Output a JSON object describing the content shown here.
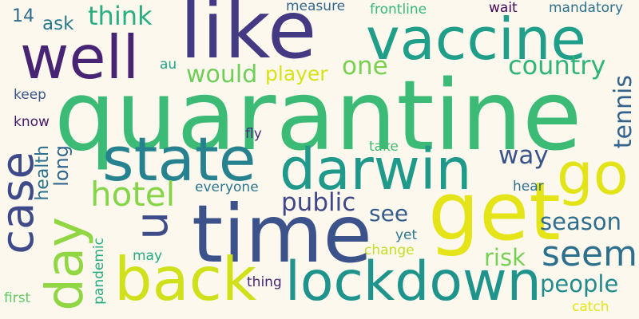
{
  "words": [
    {
      "text": "quarantine",
      "color": "#3bbb75"
    },
    {
      "text": "like",
      "color": "#443983"
    },
    {
      "text": "vaccine",
      "color": "#1f9e89"
    },
    {
      "text": "well",
      "color": "#482475"
    },
    {
      "text": "time",
      "color": "#3b528b"
    },
    {
      "text": "state",
      "color": "#26828e"
    },
    {
      "text": "darwin",
      "color": "#1f9a8a"
    },
    {
      "text": "get",
      "color": "#e5e419"
    },
    {
      "text": "go",
      "color": "#e2e418"
    },
    {
      "text": "case",
      "color": "#3e4a89"
    },
    {
      "text": "day",
      "color": "#90d743"
    },
    {
      "text": "back",
      "color": "#d0e11c"
    },
    {
      "text": "lockdown",
      "color": "#1f948c"
    },
    {
      "text": "hotel",
      "color": "#86d549"
    },
    {
      "text": "seem",
      "color": "#2d708e"
    },
    {
      "text": "u",
      "color": "#3e4c8a"
    },
    {
      "text": "think",
      "color": "#28ae80"
    },
    {
      "text": "country",
      "color": "#2fb47c"
    },
    {
      "text": "one",
      "color": "#7ad151"
    },
    {
      "text": "would",
      "color": "#6ece58"
    },
    {
      "text": "player",
      "color": "#d8e219"
    },
    {
      "text": "tennis",
      "color": "#33638d"
    },
    {
      "text": "way",
      "color": "#3a538b"
    },
    {
      "text": "public",
      "color": "#3f4889"
    },
    {
      "text": "see",
      "color": "#365c8d"
    },
    {
      "text": "season",
      "color": "#2e6e8e"
    },
    {
      "text": "people",
      "color": "#238a8d"
    },
    {
      "text": "risk",
      "color": "#75d054"
    },
    {
      "text": "long",
      "color": "#31668e"
    },
    {
      "text": "health",
      "color": "#2c718e"
    },
    {
      "text": "ask",
      "color": "#29798e"
    },
    {
      "text": "14",
      "color": "#2f6c8e"
    },
    {
      "text": "measure",
      "color": "#31678e"
    },
    {
      "text": "frontline",
      "color": "#35b779"
    },
    {
      "text": "wait",
      "color": "#450559"
    },
    {
      "text": "mandatory",
      "color": "#2c728e"
    },
    {
      "text": "au",
      "color": "#20a386"
    },
    {
      "text": "keep",
      "color": "#38588c"
    },
    {
      "text": "know",
      "color": "#481668"
    },
    {
      "text": "fly",
      "color": "#472c7a"
    },
    {
      "text": "take",
      "color": "#3dbc74"
    },
    {
      "text": "everyone",
      "color": "#2a768e"
    },
    {
      "text": "hear",
      "color": "#2e6f8e"
    },
    {
      "text": "yet",
      "color": "#2a788e"
    },
    {
      "text": "change",
      "color": "#c2df23"
    },
    {
      "text": "may",
      "color": "#23a983"
    },
    {
      "text": "pandemic",
      "color": "#24aa83"
    },
    {
      "text": "thing",
      "color": "#482878"
    },
    {
      "text": "first",
      "color": "#5ec962"
    },
    {
      "text": "catch",
      "color": "#e7e419"
    }
  ]
}
